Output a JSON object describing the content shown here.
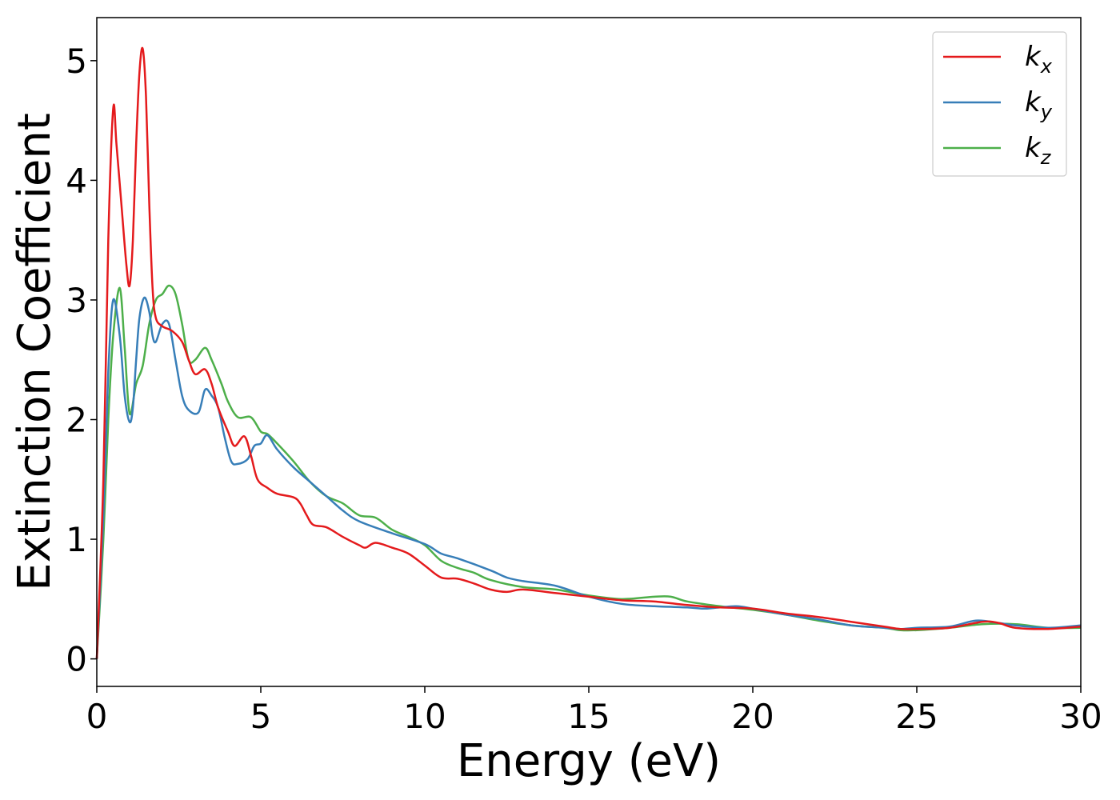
{
  "chart_data": {
    "type": "line",
    "title": "",
    "xlabel": "Energy (eV)",
    "ylabel": "Extinction Coefficient",
    "xlim": [
      0,
      30
    ],
    "ylim": [
      -0.23,
      5.36
    ],
    "xticks": [
      0,
      5,
      10,
      15,
      20,
      25,
      30
    ],
    "yticks": [
      0,
      1,
      2,
      3,
      4,
      5
    ],
    "grid": false,
    "legend_position": "top-right",
    "series": [
      {
        "name": "k_x",
        "label_base": "k",
        "label_sub": "x",
        "color": "#e41a1c",
        "points": [
          [
            0,
            0
          ],
          [
            0.2,
            1.5
          ],
          [
            0.35,
            3.5
          ],
          [
            0.5,
            4.6
          ],
          [
            0.6,
            4.3
          ],
          [
            0.75,
            3.8
          ],
          [
            0.9,
            3.3
          ],
          [
            1.0,
            3.12
          ],
          [
            1.1,
            3.5
          ],
          [
            1.2,
            4.3
          ],
          [
            1.3,
            4.9
          ],
          [
            1.4,
            5.1
          ],
          [
            1.5,
            4.7
          ],
          [
            1.6,
            3.8
          ],
          [
            1.7,
            3.1
          ],
          [
            1.8,
            2.85
          ],
          [
            2.0,
            2.78
          ],
          [
            2.3,
            2.74
          ],
          [
            2.6,
            2.65
          ],
          [
            2.8,
            2.5
          ],
          [
            3.0,
            2.38
          ],
          [
            3.3,
            2.42
          ],
          [
            3.5,
            2.3
          ],
          [
            3.7,
            2.1
          ],
          [
            4.0,
            1.9
          ],
          [
            4.2,
            1.78
          ],
          [
            4.5,
            1.86
          ],
          [
            4.7,
            1.7
          ],
          [
            4.9,
            1.5
          ],
          [
            5.2,
            1.43
          ],
          [
            5.5,
            1.38
          ],
          [
            6.0,
            1.35
          ],
          [
            6.2,
            1.3
          ],
          [
            6.4,
            1.2
          ],
          [
            6.6,
            1.12
          ],
          [
            7.0,
            1.1
          ],
          [
            7.5,
            1.02
          ],
          [
            8.0,
            0.95
          ],
          [
            8.2,
            0.93
          ],
          [
            8.5,
            0.97
          ],
          [
            9.0,
            0.93
          ],
          [
            9.5,
            0.88
          ],
          [
            10.0,
            0.78
          ],
          [
            10.5,
            0.68
          ],
          [
            11.0,
            0.67
          ],
          [
            11.5,
            0.63
          ],
          [
            12.0,
            0.58
          ],
          [
            12.5,
            0.56
          ],
          [
            13.0,
            0.58
          ],
          [
            14.0,
            0.55
          ],
          [
            15.0,
            0.52
          ],
          [
            16.0,
            0.49
          ],
          [
            17.0,
            0.48
          ],
          [
            18.0,
            0.45
          ],
          [
            19.0,
            0.43
          ],
          [
            20.0,
            0.42
          ],
          [
            21.0,
            0.38
          ],
          [
            22.0,
            0.35
          ],
          [
            23.0,
            0.31
          ],
          [
            24.0,
            0.27
          ],
          [
            24.5,
            0.25
          ],
          [
            25.0,
            0.25
          ],
          [
            26.0,
            0.26
          ],
          [
            27.0,
            0.31
          ],
          [
            27.5,
            0.3
          ],
          [
            28.0,
            0.26
          ],
          [
            29.0,
            0.25
          ],
          [
            30.0,
            0.27
          ]
        ]
      },
      {
        "name": "k_y",
        "label_base": "k",
        "label_sub": "y",
        "color": "#377eb8",
        "points": [
          [
            0,
            0
          ],
          [
            0.2,
            1.2
          ],
          [
            0.35,
            2.4
          ],
          [
            0.5,
            3.0
          ],
          [
            0.7,
            2.7
          ],
          [
            0.85,
            2.2
          ],
          [
            1.0,
            1.98
          ],
          [
            1.1,
            2.1
          ],
          [
            1.2,
            2.5
          ],
          [
            1.3,
            2.85
          ],
          [
            1.45,
            3.02
          ],
          [
            1.6,
            2.9
          ],
          [
            1.7,
            2.7
          ],
          [
            1.8,
            2.65
          ],
          [
            2.0,
            2.8
          ],
          [
            2.2,
            2.8
          ],
          [
            2.4,
            2.5
          ],
          [
            2.6,
            2.2
          ],
          [
            2.8,
            2.08
          ],
          [
            3.1,
            2.06
          ],
          [
            3.3,
            2.25
          ],
          [
            3.5,
            2.2
          ],
          [
            3.7,
            2.1
          ],
          [
            3.9,
            1.85
          ],
          [
            4.1,
            1.65
          ],
          [
            4.3,
            1.63
          ],
          [
            4.6,
            1.67
          ],
          [
            4.8,
            1.78
          ],
          [
            5.0,
            1.8
          ],
          [
            5.2,
            1.87
          ],
          [
            5.5,
            1.75
          ],
          [
            6.0,
            1.6
          ],
          [
            6.5,
            1.48
          ],
          [
            7.0,
            1.36
          ],
          [
            7.5,
            1.24
          ],
          [
            8.0,
            1.15
          ],
          [
            9.0,
            1.05
          ],
          [
            10.0,
            0.96
          ],
          [
            10.5,
            0.88
          ],
          [
            11.0,
            0.84
          ],
          [
            12.0,
            0.74
          ],
          [
            12.5,
            0.68
          ],
          [
            13.0,
            0.65
          ],
          [
            14.0,
            0.61
          ],
          [
            15.0,
            0.52
          ],
          [
            16.0,
            0.46
          ],
          [
            17.0,
            0.44
          ],
          [
            18.0,
            0.43
          ],
          [
            18.5,
            0.42
          ],
          [
            19.0,
            0.43
          ],
          [
            19.5,
            0.44
          ],
          [
            20.0,
            0.42
          ],
          [
            21.0,
            0.37
          ],
          [
            22.0,
            0.33
          ],
          [
            23.0,
            0.28
          ],
          [
            24.0,
            0.26
          ],
          [
            24.5,
            0.25
          ],
          [
            25.0,
            0.26
          ],
          [
            26.0,
            0.27
          ],
          [
            26.8,
            0.32
          ],
          [
            27.5,
            0.3
          ],
          [
            28.0,
            0.28
          ],
          [
            29.0,
            0.26
          ],
          [
            30.0,
            0.28
          ]
        ]
      },
      {
        "name": "k_z",
        "label_base": "k",
        "label_sub": "z",
        "color": "#4daf4a",
        "points": [
          [
            0,
            0
          ],
          [
            0.2,
            1.0
          ],
          [
            0.35,
            2.0
          ],
          [
            0.5,
            2.7
          ],
          [
            0.7,
            3.1
          ],
          [
            0.85,
            2.6
          ],
          [
            1.0,
            2.05
          ],
          [
            1.2,
            2.3
          ],
          [
            1.4,
            2.45
          ],
          [
            1.6,
            2.8
          ],
          [
            1.8,
            3.0
          ],
          [
            2.0,
            3.05
          ],
          [
            2.2,
            3.12
          ],
          [
            2.4,
            3.05
          ],
          [
            2.6,
            2.8
          ],
          [
            2.8,
            2.5
          ],
          [
            3.0,
            2.5
          ],
          [
            3.3,
            2.6
          ],
          [
            3.5,
            2.5
          ],
          [
            3.8,
            2.3
          ],
          [
            4.0,
            2.15
          ],
          [
            4.3,
            2.02
          ],
          [
            4.7,
            2.02
          ],
          [
            5.0,
            1.9
          ],
          [
            5.2,
            1.88
          ],
          [
            5.5,
            1.8
          ],
          [
            6.0,
            1.65
          ],
          [
            6.5,
            1.48
          ],
          [
            7.0,
            1.36
          ],
          [
            7.5,
            1.3
          ],
          [
            8.0,
            1.2
          ],
          [
            8.5,
            1.18
          ],
          [
            9.0,
            1.08
          ],
          [
            9.5,
            1.02
          ],
          [
            10.0,
            0.95
          ],
          [
            10.5,
            0.82
          ],
          [
            11.0,
            0.76
          ],
          [
            11.5,
            0.72
          ],
          [
            12.0,
            0.66
          ],
          [
            13.0,
            0.6
          ],
          [
            14.0,
            0.58
          ],
          [
            15.0,
            0.53
          ],
          [
            16.0,
            0.5
          ],
          [
            17.0,
            0.52
          ],
          [
            17.5,
            0.52
          ],
          [
            18.0,
            0.48
          ],
          [
            19.0,
            0.44
          ],
          [
            20.0,
            0.41
          ],
          [
            21.0,
            0.37
          ],
          [
            22.0,
            0.32
          ],
          [
            23.0,
            0.28
          ],
          [
            24.0,
            0.26
          ],
          [
            24.5,
            0.24
          ],
          [
            25.0,
            0.24
          ],
          [
            26.0,
            0.26
          ],
          [
            27.0,
            0.29
          ],
          [
            28.0,
            0.29
          ],
          [
            29.0,
            0.26
          ],
          [
            30.0,
            0.26
          ]
        ]
      }
    ]
  }
}
